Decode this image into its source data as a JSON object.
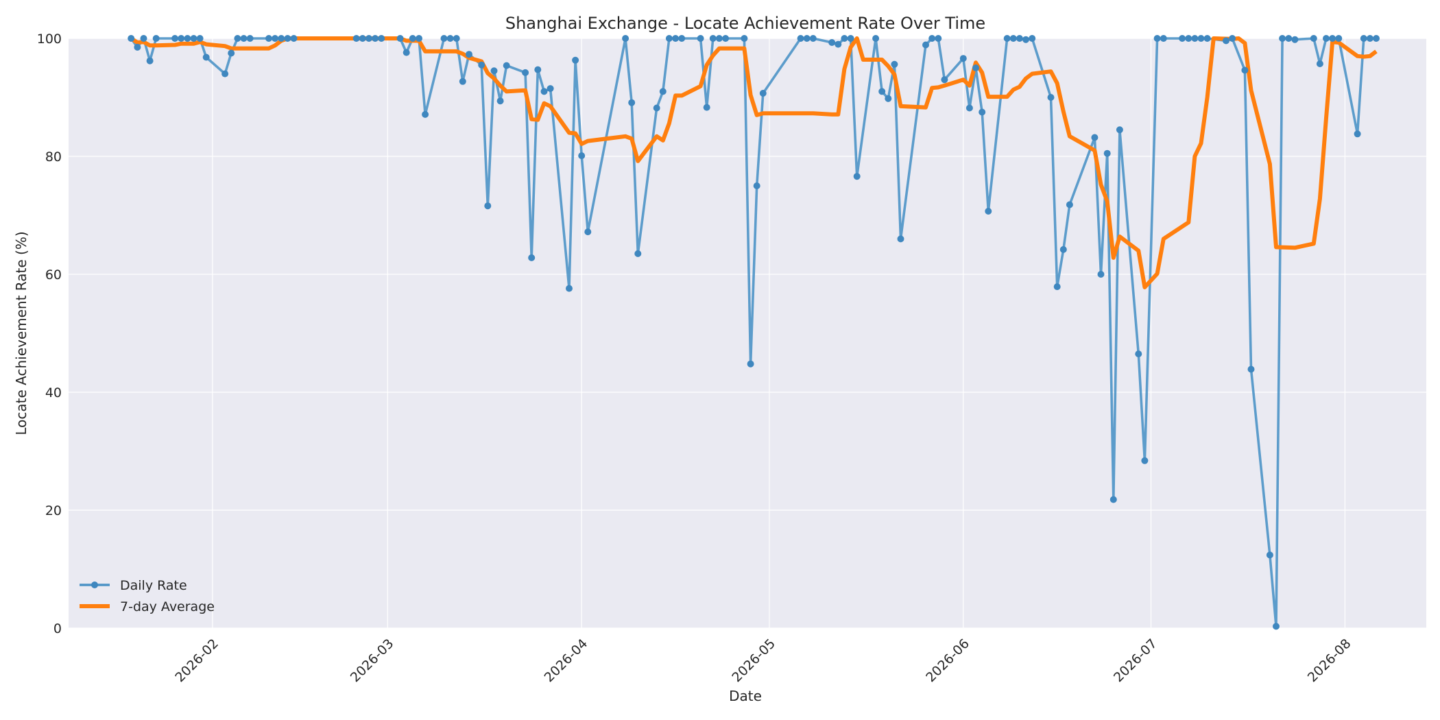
{
  "chart_data": {
    "type": "line",
    "title": "Shanghai Exchange - Locate Achievement Rate Over Time",
    "xlabel": "Date",
    "ylabel": "Locate Achievement Rate (%)",
    "xlim": [
      "2026-01-09",
      "2026-08-14"
    ],
    "ylim": [
      0,
      100
    ],
    "x_ticks": [
      "2026-02",
      "2026-03",
      "2026-04",
      "2026-05",
      "2026-06",
      "2026-07",
      "2026-08"
    ],
    "y_ticks": [
      0,
      20,
      40,
      60,
      80,
      100
    ],
    "grid": true,
    "legend_position": "bottom-left",
    "colors": {
      "daily": "#4c93c6",
      "average": "#ff7f0e",
      "plot_background": "#eaeaf2"
    },
    "series": [
      {
        "name": "Daily Rate",
        "marker": "circle",
        "points": [
          [
            "2026-01-19",
            100
          ],
          [
            "2026-01-20",
            98.5
          ],
          [
            "2026-01-21",
            100
          ],
          [
            "2026-01-22",
            96.2
          ],
          [
            "2026-01-23",
            100
          ],
          [
            "2026-01-26",
            100
          ],
          [
            "2026-01-27",
            100
          ],
          [
            "2026-01-28",
            100
          ],
          [
            "2026-01-29",
            100
          ],
          [
            "2026-01-30",
            100
          ],
          [
            "2026-01-31",
            96.8
          ],
          [
            "2026-02-03",
            94.0
          ],
          [
            "2026-02-04",
            97.5
          ],
          [
            "2026-02-05",
            100
          ],
          [
            "2026-02-06",
            100
          ],
          [
            "2026-02-07",
            100
          ],
          [
            "2026-02-10",
            100
          ],
          [
            "2026-02-11",
            100
          ],
          [
            "2026-02-12",
            100
          ],
          [
            "2026-02-13",
            100
          ],
          [
            "2026-02-14",
            100
          ],
          [
            "2026-02-24",
            100
          ],
          [
            "2026-02-25",
            100
          ],
          [
            "2026-02-26",
            100
          ],
          [
            "2026-02-27",
            100
          ],
          [
            "2026-02-28",
            100
          ],
          [
            "2026-03-03",
            100
          ],
          [
            "2026-03-04",
            97.6
          ],
          [
            "2026-03-05",
            100
          ],
          [
            "2026-03-06",
            100
          ],
          [
            "2026-03-07",
            87.1
          ],
          [
            "2026-03-10",
            100
          ],
          [
            "2026-03-11",
            100
          ],
          [
            "2026-03-12",
            100
          ],
          [
            "2026-03-13",
            92.7
          ],
          [
            "2026-03-14",
            97.3
          ],
          [
            "2026-03-16",
            95.5
          ],
          [
            "2026-03-17",
            71.6
          ],
          [
            "2026-03-18",
            94.5
          ],
          [
            "2026-03-19",
            89.4
          ],
          [
            "2026-03-20",
            95.4
          ],
          [
            "2026-03-23",
            94.2
          ],
          [
            "2026-03-24",
            62.8
          ],
          [
            "2026-03-25",
            94.7
          ],
          [
            "2026-03-26",
            91.0
          ],
          [
            "2026-03-27",
            91.5
          ],
          [
            "2026-03-30",
            57.6
          ],
          [
            "2026-03-31",
            96.3
          ],
          [
            "2026-04-01",
            80.1
          ],
          [
            "2026-04-02",
            67.2
          ],
          [
            "2026-04-08",
            100
          ],
          [
            "2026-04-09",
            89.1
          ],
          [
            "2026-04-10",
            63.5
          ],
          [
            "2026-04-13",
            88.2
          ],
          [
            "2026-04-14",
            91.0
          ],
          [
            "2026-04-15",
            100
          ],
          [
            "2026-04-16",
            100
          ],
          [
            "2026-04-17",
            100
          ],
          [
            "2026-04-20",
            100
          ],
          [
            "2026-04-21",
            88.3
          ],
          [
            "2026-04-22",
            100
          ],
          [
            "2026-04-23",
            100
          ],
          [
            "2026-04-24",
            100
          ],
          [
            "2026-04-27",
            100
          ],
          [
            "2026-04-28",
            44.8
          ],
          [
            "2026-04-29",
            75.0
          ],
          [
            "2026-04-30",
            90.7
          ],
          [
            "2026-05-06",
            100
          ],
          [
            "2026-05-07",
            100
          ],
          [
            "2026-05-08",
            100
          ],
          [
            "2026-05-11",
            99.3
          ],
          [
            "2026-05-12",
            99.0
          ],
          [
            "2026-05-13",
            100
          ],
          [
            "2026-05-14",
            100
          ],
          [
            "2026-05-15",
            76.6
          ],
          [
            "2026-05-18",
            100
          ],
          [
            "2026-05-19",
            91.0
          ],
          [
            "2026-05-20",
            89.8
          ],
          [
            "2026-05-21",
            95.6
          ],
          [
            "2026-05-22",
            66.0
          ],
          [
            "2026-05-26",
            98.9
          ],
          [
            "2026-05-27",
            100
          ],
          [
            "2026-05-28",
            100
          ],
          [
            "2026-05-29",
            93.0
          ],
          [
            "2026-06-01",
            96.6
          ],
          [
            "2026-06-02",
            88.2
          ],
          [
            "2026-06-03",
            95.0
          ],
          [
            "2026-06-04",
            87.5
          ],
          [
            "2026-06-05",
            70.7
          ],
          [
            "2026-06-08",
            100
          ],
          [
            "2026-06-09",
            100
          ],
          [
            "2026-06-10",
            100
          ],
          [
            "2026-06-11",
            99.8
          ],
          [
            "2026-06-12",
            100
          ],
          [
            "2026-06-15",
            90.0
          ],
          [
            "2026-06-16",
            57.9
          ],
          [
            "2026-06-17",
            64.2
          ],
          [
            "2026-06-18",
            71.8
          ],
          [
            "2026-06-22",
            83.2
          ],
          [
            "2026-06-23",
            60.0
          ],
          [
            "2026-06-24",
            80.5
          ],
          [
            "2026-06-25",
            21.8
          ],
          [
            "2026-06-26",
            84.5
          ],
          [
            "2026-06-29",
            46.5
          ],
          [
            "2026-06-30",
            28.4
          ],
          [
            "2026-07-02",
            100
          ],
          [
            "2026-07-03",
            100
          ],
          [
            "2026-07-06",
            100
          ],
          [
            "2026-07-07",
            100
          ],
          [
            "2026-07-08",
            100
          ],
          [
            "2026-07-09",
            100
          ],
          [
            "2026-07-10",
            100
          ],
          [
            "2026-07-13",
            99.6
          ],
          [
            "2026-07-14",
            100
          ],
          [
            "2026-07-16",
            94.6
          ],
          [
            "2026-07-17",
            43.9
          ],
          [
            "2026-07-20",
            12.4
          ],
          [
            "2026-07-21",
            0.3
          ],
          [
            "2026-07-22",
            100
          ],
          [
            "2026-07-23",
            100
          ],
          [
            "2026-07-24",
            99.8
          ],
          [
            "2026-07-27",
            100
          ],
          [
            "2026-07-28",
            95.7
          ],
          [
            "2026-07-29",
            100
          ],
          [
            "2026-07-30",
            100
          ],
          [
            "2026-07-31",
            100
          ],
          [
            "2026-08-03",
            83.8
          ],
          [
            "2026-08-04",
            100
          ],
          [
            "2026-08-05",
            100
          ],
          [
            "2026-08-06",
            100
          ]
        ]
      },
      {
        "name": "7-day Average",
        "marker": "none",
        "points": [
          [
            "2026-01-19",
            100
          ],
          [
            "2026-01-20",
            99.3
          ],
          [
            "2026-01-21",
            99.4
          ],
          [
            "2026-01-22",
            98.8
          ],
          [
            "2026-01-23",
            98.8
          ],
          [
            "2026-01-26",
            98.9
          ],
          [
            "2026-01-27",
            99.1
          ],
          [
            "2026-01-28",
            99.1
          ],
          [
            "2026-01-29",
            99.1
          ],
          [
            "2026-01-30",
            99.4
          ],
          [
            "2026-01-31",
            99.0
          ],
          [
            "2026-02-03",
            98.7
          ],
          [
            "2026-02-04",
            98.3
          ],
          [
            "2026-02-05",
            98.3
          ],
          [
            "2026-02-06",
            98.3
          ],
          [
            "2026-02-07",
            98.3
          ],
          [
            "2026-02-10",
            98.3
          ],
          [
            "2026-02-11",
            98.8
          ],
          [
            "2026-02-12",
            99.6
          ],
          [
            "2026-02-13",
            100
          ],
          [
            "2026-02-14",
            100
          ],
          [
            "2026-02-24",
            100
          ],
          [
            "2026-02-25",
            100
          ],
          [
            "2026-02-26",
            100
          ],
          [
            "2026-02-27",
            100
          ],
          [
            "2026-02-28",
            100
          ],
          [
            "2026-03-03",
            100
          ],
          [
            "2026-03-04",
            99.6
          ],
          [
            "2026-03-05",
            99.6
          ],
          [
            "2026-03-06",
            99.6
          ],
          [
            "2026-03-07",
            97.8
          ],
          [
            "2026-03-10",
            97.8
          ],
          [
            "2026-03-11",
            97.8
          ],
          [
            "2026-03-12",
            97.8
          ],
          [
            "2026-03-13",
            97.4
          ],
          [
            "2026-03-14",
            96.7
          ],
          [
            "2026-03-16",
            96.1
          ],
          [
            "2026-03-17",
            94.1
          ],
          [
            "2026-03-18",
            93.2
          ],
          [
            "2026-03-19",
            92.0
          ],
          [
            "2026-03-20",
            91.0
          ],
          [
            "2026-03-23",
            91.2
          ],
          [
            "2026-03-24",
            86.3
          ],
          [
            "2026-03-25",
            86.2
          ],
          [
            "2026-03-26",
            89.0
          ],
          [
            "2026-03-27",
            88.5
          ],
          [
            "2026-03-30",
            84.0
          ],
          [
            "2026-03-31",
            83.9
          ],
          [
            "2026-04-01",
            82.1
          ],
          [
            "2026-04-02",
            82.6
          ],
          [
            "2026-04-08",
            83.4
          ],
          [
            "2026-04-09",
            83.0
          ],
          [
            "2026-04-10",
            79.2
          ],
          [
            "2026-04-13",
            83.4
          ],
          [
            "2026-04-14",
            82.7
          ],
          [
            "2026-04-15",
            85.6
          ],
          [
            "2026-04-16",
            90.3
          ],
          [
            "2026-04-17",
            90.3
          ],
          [
            "2026-04-20",
            91.9
          ],
          [
            "2026-04-21",
            95.5
          ],
          [
            "2026-04-22",
            97.1
          ],
          [
            "2026-04-23",
            98.3
          ],
          [
            "2026-04-24",
            98.3
          ],
          [
            "2026-04-27",
            98.3
          ],
          [
            "2026-04-28",
            90.4
          ],
          [
            "2026-04-29",
            87.0
          ],
          [
            "2026-04-30",
            87.3
          ],
          [
            "2026-05-06",
            87.3
          ],
          [
            "2026-05-07",
            87.3
          ],
          [
            "2026-05-08",
            87.3
          ],
          [
            "2026-05-11",
            87.1
          ],
          [
            "2026-05-12",
            87.1
          ],
          [
            "2026-05-13",
            94.8
          ],
          [
            "2026-05-14",
            98.5
          ],
          [
            "2026-05-15",
            100
          ],
          [
            "2026-05-16",
            96.4
          ],
          [
            "2026-05-19",
            96.4
          ],
          [
            "2026-05-20",
            95.3
          ],
          [
            "2026-05-21",
            93.9
          ],
          [
            "2026-05-22",
            88.5
          ],
          [
            "2026-05-26",
            88.3
          ],
          [
            "2026-05-27",
            91.6
          ],
          [
            "2026-05-28",
            91.7
          ],
          [
            "2026-05-29",
            92.0
          ],
          [
            "2026-06-01",
            93.0
          ],
          [
            "2026-06-02",
            92.0
          ],
          [
            "2026-06-03",
            95.9
          ],
          [
            "2026-06-04",
            94.2
          ],
          [
            "2026-06-05",
            90.1
          ],
          [
            "2026-06-08",
            90.1
          ],
          [
            "2026-06-09",
            91.3
          ],
          [
            "2026-06-10",
            91.8
          ],
          [
            "2026-06-11",
            93.2
          ],
          [
            "2026-06-12",
            94.0
          ],
          [
            "2026-06-15",
            94.4
          ],
          [
            "2026-06-16",
            92.4
          ],
          [
            "2026-06-17",
            87.6
          ],
          [
            "2026-06-18",
            83.4
          ],
          [
            "2026-06-22",
            81.0
          ],
          [
            "2026-06-23",
            75.2
          ],
          [
            "2026-06-24",
            72.4
          ],
          [
            "2026-06-25",
            62.8
          ],
          [
            "2026-06-26",
            66.4
          ],
          [
            "2026-06-29",
            64.0
          ],
          [
            "2026-06-30",
            57.8
          ],
          [
            "2026-07-02",
            60.1
          ],
          [
            "2026-07-03",
            66.0
          ],
          [
            "2026-07-07",
            68.8
          ],
          [
            "2026-07-08",
            80.0
          ],
          [
            "2026-07-09",
            82.2
          ],
          [
            "2026-07-10",
            90.0
          ],
          [
            "2026-07-11",
            100
          ],
          [
            "2026-07-14",
            99.9
          ],
          [
            "2026-07-15",
            100
          ],
          [
            "2026-07-16",
            99.2
          ],
          [
            "2026-07-17",
            91.2
          ],
          [
            "2026-07-20",
            78.7
          ],
          [
            "2026-07-21",
            64.6
          ],
          [
            "2026-07-24",
            64.5
          ],
          [
            "2026-07-27",
            65.2
          ],
          [
            "2026-07-28",
            72.8
          ],
          [
            "2026-07-29",
            86.5
          ],
          [
            "2026-07-30",
            99.4
          ],
          [
            "2026-07-31",
            99.3
          ],
          [
            "2026-08-03",
            97.0
          ],
          [
            "2026-08-04",
            96.9
          ],
          [
            "2026-08-05",
            97.0
          ],
          [
            "2026-08-06",
            97.8
          ]
        ]
      }
    ]
  }
}
